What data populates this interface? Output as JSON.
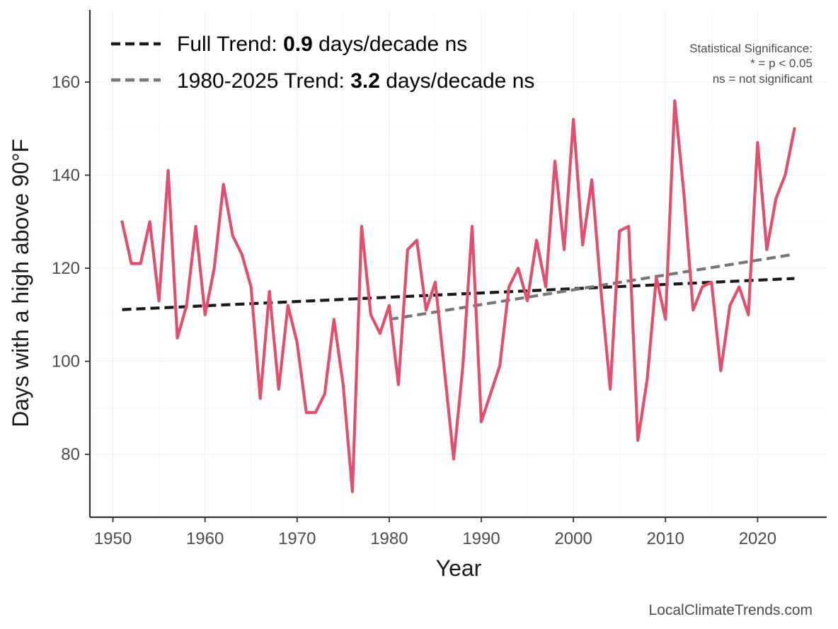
{
  "chart_data": {
    "type": "line",
    "title": "",
    "xlabel": "Year",
    "ylabel": "Days with a high above 90°F",
    "xlim": [
      1947.5,
      2027.5
    ],
    "ylim": [
      66.5,
      175.5
    ],
    "x_ticks": [
      1950,
      1960,
      1970,
      1980,
      1990,
      2000,
      2010,
      2020
    ],
    "y_ticks": [
      80,
      100,
      120,
      140,
      160
    ],
    "grid": true,
    "series": [
      {
        "name": "Days with a high above 90°F",
        "color": "#e0506e",
        "x": [
          1951,
          1952,
          1953,
          1954,
          1955,
          1956,
          1957,
          1958,
          1959,
          1960,
          1961,
          1962,
          1963,
          1964,
          1965,
          1966,
          1967,
          1968,
          1969,
          1970,
          1971,
          1972,
          1973,
          1974,
          1975,
          1976,
          1977,
          1978,
          1979,
          1980,
          1981,
          1982,
          1983,
          1984,
          1985,
          1986,
          1987,
          1988,
          1989,
          1990,
          1991,
          1992,
          1993,
          1994,
          1995,
          1996,
          1997,
          1998,
          1999,
          2000,
          2001,
          2002,
          2003,
          2004,
          2005,
          2006,
          2007,
          2008,
          2009,
          2010,
          2011,
          2012,
          2013,
          2014,
          2015,
          2016,
          2017,
          2018,
          2019,
          2020,
          2021,
          2022,
          2023,
          2024
        ],
        "values": [
          130,
          121,
          121,
          130,
          113,
          141,
          105,
          112,
          129,
          110,
          120,
          138,
          127,
          123,
          116,
          92,
          115,
          94,
          112,
          104,
          89,
          89,
          93,
          109,
          95,
          72,
          129,
          110,
          106,
          112,
          95,
          124,
          126,
          111,
          117,
          98,
          79,
          99,
          129,
          87,
          93,
          99,
          116,
          120,
          113,
          126,
          116,
          143,
          124,
          152,
          125,
          139,
          115,
          94,
          128,
          129,
          83,
          96,
          118,
          109,
          156,
          136,
          111,
          116,
          117,
          98,
          112,
          116,
          110,
          147,
          124,
          135,
          140,
          150
        ]
      }
    ],
    "trends": [
      {
        "name": "Full Trend",
        "color": "#1a1a1a",
        "x": [
          1951,
          2024
        ],
        "values": [
          111.1,
          117.8
        ]
      },
      {
        "name": "1980-2025 Trend",
        "color": "#777777",
        "x": [
          1980,
          2024
        ],
        "values": [
          109.0,
          123.0
        ]
      }
    ],
    "legend": {
      "position": "top-left",
      "items": [
        {
          "prefix": "Full Trend: ",
          "value": "0.9",
          "suffix": " days/decade ns",
          "color": "#1a1a1a"
        },
        {
          "prefix": "1980-2025 Trend: ",
          "value": "3.2",
          "suffix": " days/decade ns",
          "color": "#777777"
        }
      ]
    },
    "annotations": {
      "significance": [
        "Statistical Significance:",
        "* = p < 0.05",
        "ns = not significant"
      ],
      "credit": "LocalClimateTrends.com"
    }
  }
}
